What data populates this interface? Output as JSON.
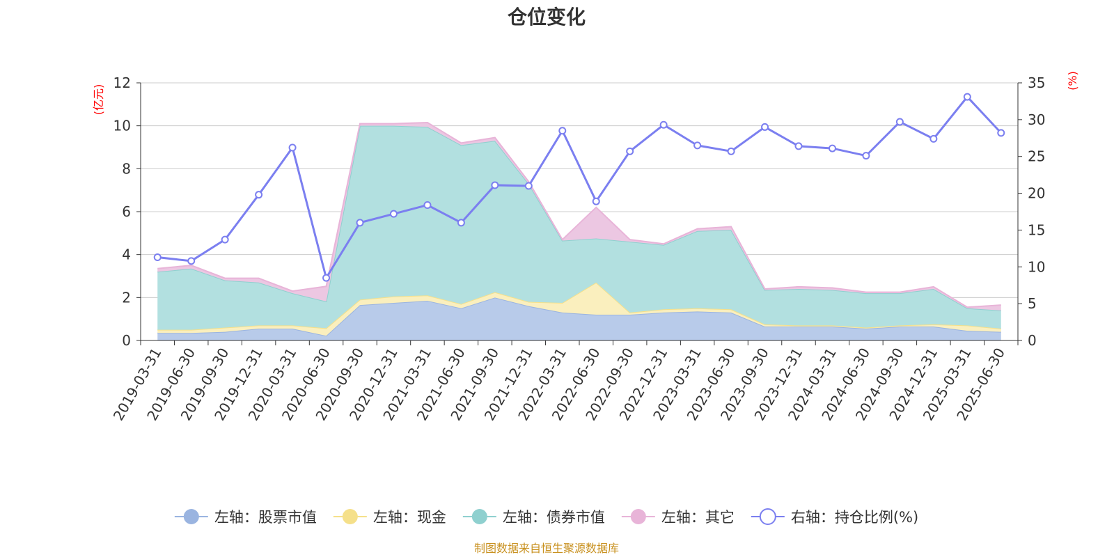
{
  "chart_data": {
    "type": "area",
    "title": "仓位变化",
    "source": "制图数据来自恒生聚源数据库",
    "left_axis_unit": "(亿元)",
    "right_axis_unit": "(%)",
    "ylim_left": [
      0,
      12
    ],
    "ylim_right": [
      0,
      35
    ],
    "yticks_left": [
      "0",
      "2",
      "4",
      "6",
      "8",
      "10",
      "12"
    ],
    "yticks_right": [
      "0",
      "5",
      "10",
      "15",
      "20",
      "25",
      "30",
      "35"
    ],
    "grid": true,
    "legend_position": "bottom",
    "categories": [
      "2019-03-31",
      "2019-06-30",
      "2019-09-30",
      "2019-12-31",
      "2020-03-31",
      "2020-06-30",
      "2020-09-30",
      "2020-12-31",
      "2021-03-31",
      "2021-06-30",
      "2021-09-30",
      "2021-12-31",
      "2022-03-31",
      "2022-06-30",
      "2022-09-30",
      "2022-12-31",
      "2023-03-31",
      "2023-06-30",
      "2023-09-30",
      "2023-12-31",
      "2024-03-31",
      "2024-06-30",
      "2024-09-30",
      "2024-12-31",
      "2025-03-31",
      "2025-06-30"
    ],
    "series": [
      {
        "name": "左轴：股票市值",
        "axis": "left",
        "stack": true,
        "color": "#9ab4e0",
        "fill": "#b8cbea",
        "values": [
          0.35,
          0.35,
          0.4,
          0.55,
          0.55,
          0.22,
          1.65,
          1.75,
          1.85,
          1.5,
          2.0,
          1.6,
          1.3,
          1.2,
          1.2,
          1.3,
          1.35,
          1.3,
          0.65,
          0.65,
          0.65,
          0.55,
          0.65,
          0.65,
          0.45,
          0.4
        ]
      },
      {
        "name": "左轴：现金",
        "axis": "left",
        "stack": true,
        "color": "#f5e08a",
        "fill": "#faefbe",
        "values": [
          0.15,
          0.15,
          0.2,
          0.15,
          0.15,
          0.35,
          0.25,
          0.3,
          0.25,
          0.2,
          0.25,
          0.2,
          0.45,
          1.5,
          0.1,
          0.15,
          0.15,
          0.15,
          0.1,
          0.05,
          0.05,
          0.05,
          0.05,
          0.1,
          0.25,
          0.15
        ]
      },
      {
        "name": "左轴：债券市值",
        "axis": "left",
        "stack": true,
        "color": "#8fd0cf",
        "fill": "#b2e0e0",
        "values": [
          2.7,
          2.85,
          2.2,
          2.0,
          1.5,
          1.25,
          8.1,
          7.95,
          7.85,
          7.4,
          7.05,
          5.5,
          2.9,
          2.05,
          3.3,
          3.0,
          3.6,
          3.7,
          1.6,
          1.7,
          1.65,
          1.6,
          1.5,
          1.65,
          0.8,
          0.85
        ]
      },
      {
        "name": "左轴：其它",
        "axis": "left",
        "stack": true,
        "color": "#e8b4d8",
        "fill": "#ecc7e2",
        "values": [
          0.15,
          0.15,
          0.1,
          0.2,
          0.1,
          0.7,
          0.1,
          0.1,
          0.2,
          0.1,
          0.15,
          0.1,
          0.05,
          1.45,
          0.1,
          0.05,
          0.1,
          0.15,
          0.05,
          0.1,
          0.1,
          0.05,
          0.05,
          0.1,
          0.05,
          0.25
        ]
      },
      {
        "name": "右轴：持仓比例(%)",
        "axis": "right",
        "type": "line",
        "color": "#7b7ff0",
        "values": [
          11.3,
          10.8,
          13.7,
          19.8,
          26.2,
          8.5,
          16.0,
          17.2,
          18.4,
          16.0,
          21.1,
          21.0,
          28.5,
          18.9,
          25.7,
          29.3,
          26.5,
          25.7,
          29.0,
          26.4,
          26.1,
          25.1,
          29.7,
          27.4,
          33.1,
          28.2
        ]
      }
    ]
  }
}
